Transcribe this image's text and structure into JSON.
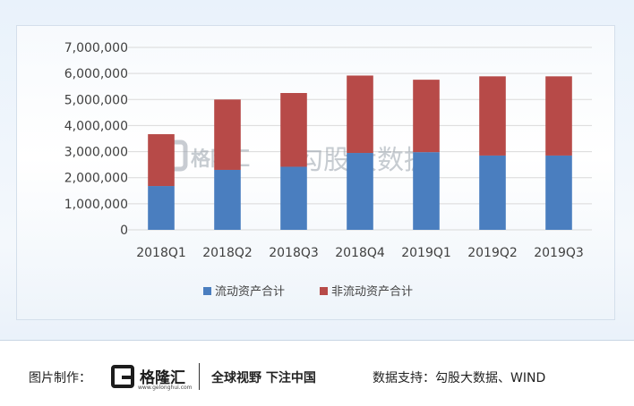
{
  "chart_data": {
    "type": "bar",
    "stacked": true,
    "categories": [
      "2018Q1",
      "2018Q2",
      "2018Q3",
      "2018Q4",
      "2019Q1",
      "2019Q2",
      "2019Q3"
    ],
    "series": [
      {
        "name": "流动资产合计",
        "color": "#4a7ebf",
        "values": [
          1680000,
          2300000,
          2420000,
          2950000,
          2980000,
          2850000,
          2850000
        ]
      },
      {
        "name": "非流动资产合计",
        "color": "#b74a48",
        "values": [
          1990000,
          2700000,
          2830000,
          2970000,
          2780000,
          3040000,
          3040000
        ]
      }
    ],
    "ylim": [
      0,
      7000000
    ],
    "yticks": [
      "0",
      "1,000,000",
      "2,000,000",
      "3,000,000",
      "4,000,000",
      "5,000,000",
      "6,000,000",
      "7,000,000"
    ],
    "grid": true,
    "legend": "bottom"
  },
  "watermark": {
    "brand": "格隆汇",
    "text": "勾股大数据"
  },
  "footer": {
    "credit_label": "图片制作：",
    "logo_name": "格隆汇",
    "logo_url": "www.gelonghui.com",
    "slogan": "全球视野 下注中国",
    "source": "数据支持：勾股大数据、WIND"
  }
}
